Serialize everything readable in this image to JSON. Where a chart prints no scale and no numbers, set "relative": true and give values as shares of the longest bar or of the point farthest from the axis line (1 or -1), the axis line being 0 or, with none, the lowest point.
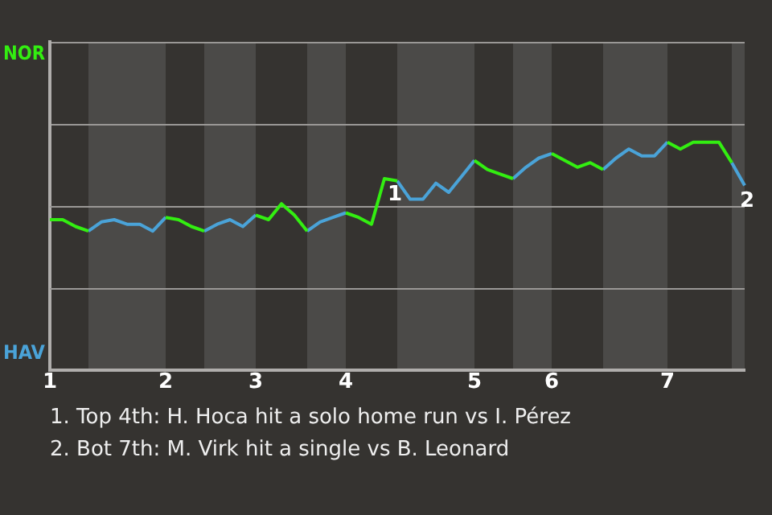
{
  "chart_data": {
    "type": "line",
    "relative": true,
    "categories": [
      "1",
      null,
      null,
      null,
      null,
      null,
      null,
      null,
      null,
      "2",
      null,
      null,
      null,
      null,
      null,
      null,
      "3",
      null,
      null,
      null,
      null,
      null,
      null,
      "4",
      null,
      null,
      null,
      null,
      null,
      null,
      null,
      null,
      null,
      "5",
      null,
      null,
      null,
      null,
      null,
      "6",
      null,
      null,
      null,
      null,
      null,
      null,
      null,
      null,
      "7",
      null,
      null,
      null,
      null,
      null,
      null
    ],
    "series": [
      {
        "name": "NOR",
        "color": "#33ee11",
        "values": [
          0.66,
          0.66,
          0.63,
          0.61,
          null,
          null,
          null,
          null,
          null,
          0.67,
          0.66,
          0.63,
          0.61,
          null,
          null,
          null,
          0.68,
          0.66,
          0.73,
          0.68,
          0.61,
          null,
          null,
          0.69,
          0.67,
          0.64,
          0.84,
          0.83,
          null,
          null,
          null,
          null,
          null,
          0.92,
          0.88,
          0.86,
          0.84,
          null,
          null,
          0.95,
          0.92,
          0.89,
          0.91,
          0.88,
          null,
          null,
          null,
          null,
          1,
          0.97,
          1,
          1,
          1,
          0.91,
          null
        ]
      },
      {
        "name": "HAV",
        "color": "#4aa3d8",
        "values": [
          null,
          null,
          null,
          0.61,
          0.65,
          0.66,
          0.64,
          0.64,
          0.61,
          0.67,
          null,
          null,
          0.61,
          0.64,
          0.66,
          0.63,
          0.68,
          null,
          null,
          null,
          0.61,
          0.65,
          0.67,
          0.69,
          null,
          null,
          null,
          0.83,
          0.75,
          0.75,
          0.82,
          0.78,
          0.85,
          0.92,
          null,
          null,
          0.84,
          0.89,
          0.93,
          0.95,
          null,
          null,
          null,
          0.88,
          0.93,
          0.97,
          0.94,
          0.94,
          1,
          null,
          null,
          null,
          null,
          0.91,
          0.81
        ]
      }
    ],
    "tick_labels": "x",
    "ref_lines": [
      {
        "axis": "y",
        "value": 0.72,
        "color": "#9a9896"
      },
      {
        "axis": "y",
        "value": 0.36,
        "color": "#9a9896"
      }
    ],
    "legend": false,
    "marker": "none",
    "line_style": "solid",
    "annotations": [
      {
        "text": "1",
        "y": 0.84
      },
      {
        "text": "2",
        "y": 0.81
      },
      "1. Top 4th: H. Hoca hit a solo home run vs I. Pérez",
      "2. Bot 7th: M. Virk hit a single vs B. Leonard"
    ]
  }
}
